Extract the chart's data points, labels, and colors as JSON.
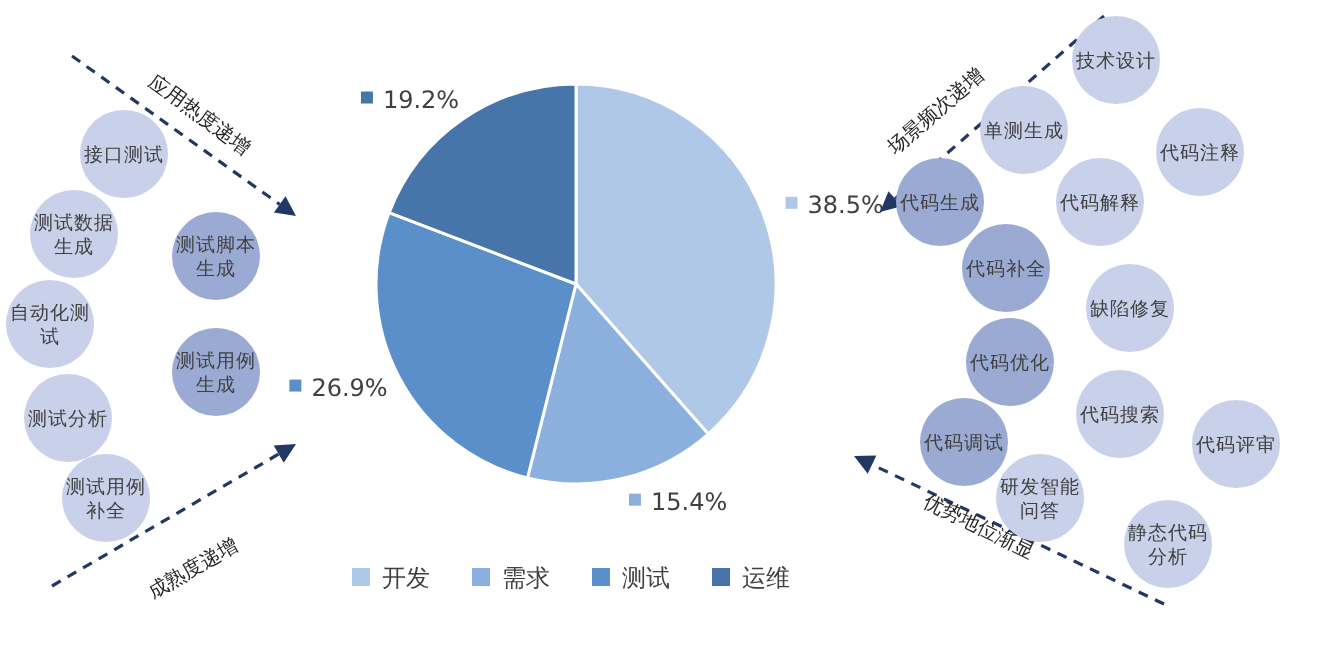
{
  "chart_data": {
    "type": "pie",
    "categories": [
      "开发",
      "需求",
      "测试",
      "运维"
    ],
    "values": [
      38.5,
      15.4,
      26.9,
      19.2
    ],
    "colors": [
      "#b0c8e8",
      "#8cb0dd",
      "#5b8fc9",
      "#4775aa"
    ],
    "value_labels": [
      "38.5%",
      "15.4%",
      "26.9%",
      "19.2%"
    ],
    "legend": "bottom",
    "annotations": [
      "应用热度递增",
      "成熟度递增",
      "场景频次递增",
      "优势地位渐显",
      "接口测试",
      "测试数据生成",
      "自动化测试",
      "测试分析",
      "测试用例补全",
      "测试脚本生成",
      "测试用例生成",
      "技术设计",
      "单测生成",
      "代码注释",
      "代码生成",
      "代码解释",
      "代码补全",
      "缺陷修复",
      "代码优化",
      "代码搜索",
      "代码评审",
      "代码调试",
      "研发智能问答",
      "静态代码分析"
    ]
  }
}
